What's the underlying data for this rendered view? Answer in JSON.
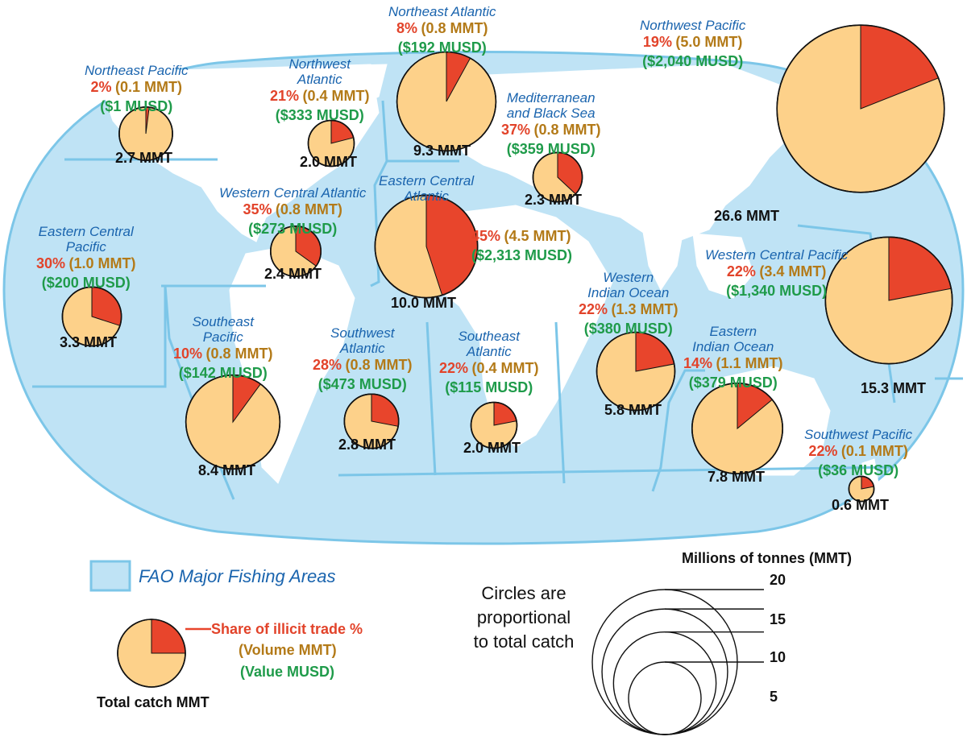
{
  "colors": {
    "ocean": "#bfe3f5",
    "ocean_border": "#7cc6e8",
    "land": "#ffffff",
    "legal_share": "#fdd18a",
    "illicit_share": "#e8452c",
    "name_text": "#1a64ae",
    "pct_text": "#e2432a",
    "volume_text": "#b37a18",
    "value_text": "#1f9b4a"
  },
  "areas": [
    {
      "id": "northeast-pacific",
      "name": [
        "Northeast Pacific"
      ],
      "share": "2%",
      "volume": "(0.1 MMT)",
      "value": "($1 MUSD)",
      "total": "2.7 MMT",
      "total_mmt": 2.7,
      "illicit_pct": 2
    },
    {
      "id": "northwest-atlantic",
      "name": [
        "Northwest",
        "Atlantic"
      ],
      "share": "21%",
      "volume": "(0.4 MMT)",
      "value": "($333 MUSD)",
      "total": "2.0 MMT",
      "total_mmt": 2.0,
      "illicit_pct": 21
    },
    {
      "id": "northeast-atlantic",
      "name": [
        "Northeast Atlantic"
      ],
      "share": "8%",
      "volume": "(0.8 MMT)",
      "value": "($192 MUSD)",
      "total": "9.3 MMT",
      "total_mmt": 9.3,
      "illicit_pct": 8
    },
    {
      "id": "mediterranean",
      "name": [
        "Mediterranean",
        "and Black Sea"
      ],
      "share": "37%",
      "volume": "(0.8 MMT)",
      "value": "($359 MUSD)",
      "total": "2.3 MMT",
      "total_mmt": 2.3,
      "illicit_pct": 37
    },
    {
      "id": "northwest-pacific",
      "name": [
        "Northwest Pacific"
      ],
      "share": "19%",
      "volume": "(5.0 MMT)",
      "value": "($2,040 MUSD)",
      "total": "26.6 MMT",
      "total_mmt": 26.6,
      "illicit_pct": 19
    },
    {
      "id": "western-central-atlantic",
      "name": [
        "Western Central Atlantic"
      ],
      "share": "35%",
      "volume": "(0.8 MMT)",
      "value": "($273 MUSD)",
      "total": "2.4 MMT",
      "total_mmt": 2.4,
      "illicit_pct": 35
    },
    {
      "id": "eastern-central-atlantic",
      "name": [
        "Eastern Central",
        "Atlantic"
      ],
      "share": "45%",
      "volume": "(4.5 MMT)",
      "value": "($2,313 MUSD)",
      "total": "10.0 MMT",
      "total_mmt": 10.0,
      "illicit_pct": 45
    },
    {
      "id": "eastern-central-pacific",
      "name": [
        "Eastern Central",
        "Pacific"
      ],
      "share": "30%",
      "volume": "(1.0 MMT)",
      "value": "($200 MUSD)",
      "total": "3.3 MMT",
      "total_mmt": 3.3,
      "illicit_pct": 30
    },
    {
      "id": "western-central-pacific",
      "name": [
        "Western Central Pacific"
      ],
      "share": "22%",
      "volume": "(3.4 MMT)",
      "value": "($1,340 MUSD)",
      "total": "15.3 MMT",
      "total_mmt": 15.3,
      "illicit_pct": 22
    },
    {
      "id": "western-indian-ocean",
      "name": [
        "Western",
        "Indian Ocean"
      ],
      "share": "22%",
      "volume": "(1.3 MMT)",
      "value": "($380 MUSD)",
      "total": "5.8 MMT",
      "total_mmt": 5.8,
      "illicit_pct": 22
    },
    {
      "id": "southeast-pacific",
      "name": [
        "Southeast",
        "Pacific"
      ],
      "share": "10%",
      "volume": "(0.8 MMT)",
      "value": "($142 MUSD)",
      "total": "8.4 MMT",
      "total_mmt": 8.4,
      "illicit_pct": 10
    },
    {
      "id": "southwest-atlantic",
      "name": [
        "Southwest",
        "Atlantic"
      ],
      "share": "28%",
      "volume": "(0.8 MMT)",
      "value": "($473 MUSD)",
      "total": "2.8 MMT",
      "total_mmt": 2.8,
      "illicit_pct": 28
    },
    {
      "id": "southeast-atlantic",
      "name": [
        "Southeast",
        "Atlantic"
      ],
      "share": "22%",
      "volume": "(0.4 MMT)",
      "value": "($115 MUSD)",
      "total": "2.0 MMT",
      "total_mmt": 2.0,
      "illicit_pct": 22
    },
    {
      "id": "eastern-indian-ocean",
      "name": [
        "Eastern",
        "Indian Ocean"
      ],
      "share": "14%",
      "volume": "(1.1 MMT)",
      "value": "($379 MUSD)",
      "total": "7.8 MMT",
      "total_mmt": 7.8,
      "illicit_pct": 14
    },
    {
      "id": "southwest-pacific",
      "name": [
        "Southwest Pacific"
      ],
      "share": "22%",
      "volume": "(0.1 MMT)",
      "value": "($36 MUSD)",
      "total": "0.6 MMT",
      "total_mmt": 0.6,
      "illicit_pct": 22
    }
  ],
  "legend": {
    "areas_label": "FAO Major Fishing Areas",
    "share_label": "Share of illicit trade %",
    "volume_label": "(Volume MMT)",
    "value_label": "(Value MUSD)",
    "total_label": "Total catch MMT",
    "example_illicit_pct": 25
  },
  "scale": {
    "title": "Millions of tonnes (MMT)",
    "note": [
      "Circles are",
      "proportional",
      "to total catch"
    ],
    "values": [
      20,
      15,
      10,
      5
    ]
  }
}
